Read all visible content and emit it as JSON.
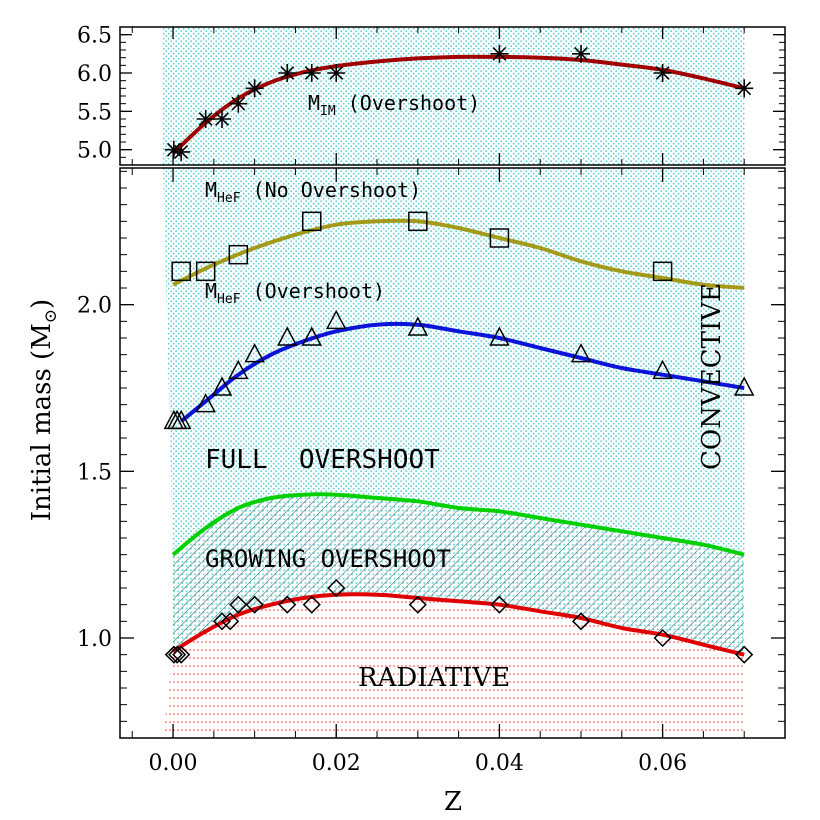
{
  "chart_data": [
    {
      "panel": "top",
      "type": "line",
      "xlim": [
        -0.0065,
        0.075
      ],
      "ylim": [
        4.8,
        6.6
      ],
      "yticks": [
        "5.0",
        "5.5",
        "6.0",
        "6.5"
      ],
      "xticks": [],
      "series": [
        {
          "name": "M_IM (Overshoot)",
          "label_main": "M",
          "label_sub": "IM",
          "label_rest": " (Overshoot)",
          "marker": "asterisk",
          "color": "#a00000",
          "x": [
            0.0001,
            0.001,
            0.004,
            0.006,
            0.008,
            0.01,
            0.014,
            0.017,
            0.02,
            0.04,
            0.05,
            0.06,
            0.07
          ],
          "y": [
            5.0,
            4.97,
            5.4,
            5.4,
            5.6,
            5.8,
            6.0,
            6.0,
            6.0,
            6.25,
            6.25,
            6.0,
            5.8
          ],
          "curve_x": [
            0.0,
            0.004,
            0.008,
            0.012,
            0.016,
            0.02,
            0.025,
            0.03,
            0.035,
            0.04,
            0.045,
            0.05,
            0.055,
            0.06,
            0.065,
            0.07
          ],
          "curve_y": [
            4.95,
            5.35,
            5.67,
            5.88,
            6.01,
            6.09,
            6.15,
            6.19,
            6.21,
            6.21,
            6.2,
            6.17,
            6.11,
            6.04,
            5.93,
            5.8
          ]
        }
      ]
    },
    {
      "panel": "bottom",
      "type": "line",
      "xlabel": "Z",
      "ylabel_main": "Initial mass (M",
      "ylabel_sym": "⊙",
      "ylabel_end": ")",
      "xlim": [
        -0.0065,
        0.075
      ],
      "ylim": [
        0.7,
        2.41
      ],
      "xticks": [
        "0.00",
        "0.02",
        "0.04",
        "0.06"
      ],
      "xtick_values": [
        0.0,
        0.02,
        0.04,
        0.06
      ],
      "yticks": [
        "1.0",
        "1.5",
        "2.0"
      ],
      "ytick_values": [
        1.0,
        1.5,
        2.0
      ],
      "series": [
        {
          "name": "M_HeF (No Overshoot)",
          "label_main": "M",
          "label_sub": "HeF",
          "label_rest": " (No Overshoot)",
          "marker": "square",
          "color": "#a49a1a",
          "x": [
            0.001,
            0.004,
            0.008,
            0.017,
            0.03,
            0.04,
            0.06
          ],
          "y": [
            2.1,
            2.1,
            2.15,
            2.25,
            2.25,
            2.2,
            2.1
          ],
          "curve_x": [
            0.0,
            0.005,
            0.01,
            0.015,
            0.02,
            0.025,
            0.03,
            0.035,
            0.04,
            0.045,
            0.05,
            0.055,
            0.06,
            0.065,
            0.07
          ],
          "curve_y": [
            2.06,
            2.12,
            2.17,
            2.21,
            2.24,
            2.25,
            2.25,
            2.23,
            2.2,
            2.17,
            2.13,
            2.1,
            2.08,
            2.06,
            2.05
          ]
        },
        {
          "name": "M_HeF (Overshoot)",
          "label_main": "M",
          "label_sub": "HeF",
          "label_rest": " (Overshoot)",
          "marker": "triangle",
          "color": "#0a14d8",
          "x": [
            0.0001,
            0.0005,
            0.001,
            0.004,
            0.006,
            0.008,
            0.01,
            0.014,
            0.017,
            0.02,
            0.03,
            0.04,
            0.05,
            0.06,
            0.07
          ],
          "y": [
            1.65,
            1.65,
            1.65,
            1.7,
            1.75,
            1.8,
            1.85,
            1.9,
            1.9,
            1.95,
            1.93,
            1.9,
            1.85,
            1.8,
            1.75
          ],
          "curve_x": [
            0.001,
            0.004,
            0.008,
            0.012,
            0.016,
            0.02,
            0.025,
            0.03,
            0.035,
            0.04,
            0.045,
            0.05,
            0.055,
            0.06,
            0.065,
            0.07
          ],
          "curve_y": [
            1.65,
            1.71,
            1.79,
            1.85,
            1.89,
            1.92,
            1.94,
            1.94,
            1.92,
            1.9,
            1.87,
            1.84,
            1.81,
            1.79,
            1.77,
            1.75
          ]
        },
        {
          "name": "growing overshoot upper boundary",
          "marker": "none",
          "color": "#00d000",
          "curve_x": [
            0.0,
            0.004,
            0.008,
            0.012,
            0.016,
            0.02,
            0.025,
            0.03,
            0.035,
            0.04,
            0.045,
            0.05,
            0.055,
            0.06,
            0.065,
            0.07
          ],
          "curve_y": [
            1.25,
            1.33,
            1.39,
            1.42,
            1.43,
            1.43,
            1.42,
            1.41,
            1.39,
            1.38,
            1.36,
            1.34,
            1.32,
            1.3,
            1.28,
            1.25
          ]
        },
        {
          "name": "radiative boundary",
          "marker": "diamond",
          "color": "#e00000",
          "x": [
            0.0001,
            0.0005,
            0.001,
            0.006,
            0.007,
            0.008,
            0.01,
            0.014,
            0.017,
            0.02,
            0.03,
            0.04,
            0.05,
            0.06,
            0.07
          ],
          "y": [
            0.95,
            0.95,
            0.95,
            1.05,
            1.05,
            1.1,
            1.1,
            1.1,
            1.1,
            1.15,
            1.1,
            1.1,
            1.05,
            1.0,
            0.95
          ],
          "curve_x": [
            0.0,
            0.004,
            0.008,
            0.012,
            0.016,
            0.02,
            0.025,
            0.03,
            0.035,
            0.04,
            0.045,
            0.05,
            0.055,
            0.06,
            0.065,
            0.07
          ],
          "curve_y": [
            0.96,
            1.02,
            1.07,
            1.1,
            1.12,
            1.13,
            1.13,
            1.12,
            1.11,
            1.1,
            1.08,
            1.06,
            1.03,
            1.01,
            0.98,
            0.95
          ]
        }
      ],
      "region_labels": {
        "full_overshoot": "FULL  OVERSHOOT",
        "growing_overshoot": "GROWING OVERSHOOT",
        "radiative": "RADIATIVE",
        "convective": "CONVECTIVE"
      }
    }
  ],
  "colors": {
    "convective_fill": "#5fd0d6",
    "growing_fill": "#3b8f8f",
    "radiative_fill": "#ff4040"
  }
}
